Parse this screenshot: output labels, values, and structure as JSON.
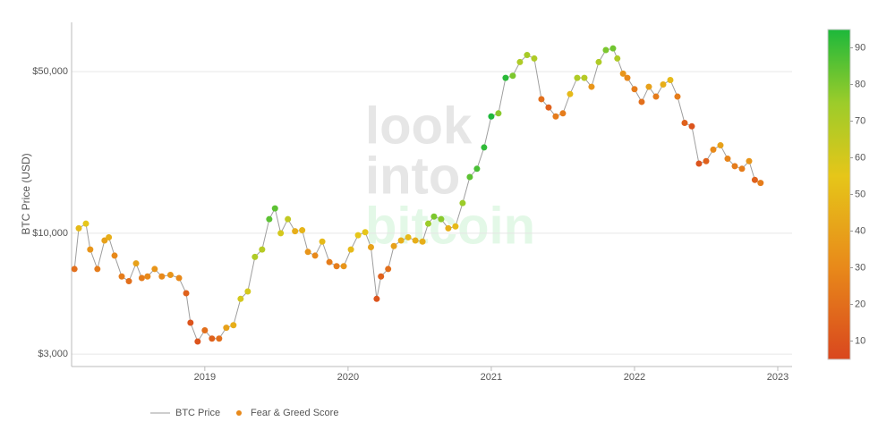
{
  "chart_data": {
    "type": "scatter",
    "y_label": "BTC Price (USD)",
    "watermark": [
      "look",
      "into",
      "bitcoin"
    ],
    "log_y": true,
    "grid": true,
    "legend": "bottom",
    "x": [
      2018.09,
      2018.12,
      2018.17,
      2018.2,
      2018.25,
      2018.3,
      2018.33,
      2018.37,
      2018.42,
      2018.47,
      2018.52,
      2018.56,
      2018.6,
      2018.65,
      2018.7,
      2018.76,
      2018.82,
      2018.87,
      2018.9,
      2018.95,
      2019.0,
      2019.05,
      2019.1,
      2019.15,
      2019.2,
      2019.25,
      2019.3,
      2019.35,
      2019.4,
      2019.45,
      2019.49,
      2019.53,
      2019.58,
      2019.63,
      2019.68,
      2019.72,
      2019.77,
      2019.82,
      2019.87,
      2019.92,
      2019.97,
      2020.02,
      2020.07,
      2020.12,
      2020.16,
      2020.2,
      2020.23,
      2020.28,
      2020.32,
      2020.37,
      2020.42,
      2020.47,
      2020.52,
      2020.56,
      2020.6,
      2020.65,
      2020.7,
      2020.75,
      2020.8,
      2020.85,
      2020.9,
      2020.95,
      2021.0,
      2021.05,
      2021.1,
      2021.15,
      2021.2,
      2021.25,
      2021.3,
      2021.35,
      2021.4,
      2021.45,
      2021.5,
      2021.55,
      2021.6,
      2021.65,
      2021.7,
      2021.75,
      2021.8,
      2021.85,
      2021.88,
      2021.92,
      2021.95,
      2022.0,
      2022.05,
      2022.1,
      2022.15,
      2022.2,
      2022.25,
      2022.3,
      2022.35,
      2022.4,
      2022.45,
      2022.5,
      2022.55,
      2022.6,
      2022.65,
      2022.7,
      2022.75,
      2022.8,
      2022.84,
      2022.88
    ],
    "series": [
      {
        "name": "BTC Price",
        "color": "#9e9e9e",
        "values": [
          7000,
          10500,
          11000,
          8500,
          7000,
          9300,
          9600,
          8000,
          6500,
          6200,
          7400,
          6400,
          6500,
          7000,
          6500,
          6600,
          6400,
          5500,
          4100,
          3400,
          3800,
          3500,
          3500,
          3900,
          4000,
          5200,
          5600,
          7900,
          8500,
          11500,
          12800,
          10000,
          11500,
          10200,
          10300,
          8300,
          8000,
          9200,
          7500,
          7200,
          7200,
          8500,
          9800,
          10100,
          8700,
          5200,
          6500,
          7000,
          8800,
          9300,
          9600,
          9300,
          9200,
          11000,
          11800,
          11500,
          10500,
          10700,
          13500,
          17500,
          19000,
          23500,
          32000,
          33000,
          47000,
          48000,
          55000,
          59000,
          57000,
          38000,
          35000,
          32000,
          33000,
          40000,
          47000,
          47000,
          43000,
          55000,
          62000,
          63000,
          57000,
          49000,
          47000,
          42000,
          37000,
          43000,
          39000,
          44000,
          46000,
          39000,
          30000,
          29000,
          20000,
          20500,
          23000,
          24000,
          21000,
          19500,
          19000,
          20500,
          17000,
          16500
        ]
      },
      {
        "name": "Fear & Greed Score",
        "color": "#e8891a",
        "values": [
          20,
          50,
          55,
          35,
          25,
          40,
          45,
          30,
          25,
          20,
          40,
          25,
          30,
          35,
          30,
          35,
          30,
          15,
          10,
          10,
          20,
          15,
          20,
          40,
          45,
          60,
          60,
          70,
          68,
          85,
          85,
          60,
          65,
          45,
          48,
          35,
          30,
          50,
          25,
          25,
          35,
          50,
          55,
          55,
          40,
          10,
          15,
          20,
          40,
          45,
          50,
          45,
          45,
          75,
          80,
          78,
          45,
          50,
          75,
          85,
          88,
          92,
          95,
          78,
          93,
          80,
          70,
          72,
          70,
          20,
          15,
          25,
          25,
          50,
          70,
          68,
          35,
          70,
          80,
          82,
          70,
          35,
          30,
          25,
          20,
          40,
          25,
          45,
          50,
          25,
          15,
          10,
          10,
          15,
          30,
          40,
          28,
          25,
          25,
          35,
          15,
          25
        ]
      }
    ],
    "xlim": [
      2018.07,
      2023.1
    ],
    "xticks": [
      2019,
      2020,
      2021,
      2022,
      2023
    ],
    "ylim": [
      2650,
      81700
    ],
    "yticks": [
      {
        "value": 3000,
        "label": "$3,000"
      },
      {
        "value": 10000,
        "label": "$10,000"
      },
      {
        "value": 50000,
        "label": "$50,000"
      }
    ],
    "clim": [
      5,
      95
    ],
    "cticks": [
      10,
      20,
      30,
      40,
      50,
      60,
      70,
      80,
      90
    ],
    "colorscale": [
      [
        5,
        "#d9471e"
      ],
      [
        30,
        "#e8891a"
      ],
      [
        55,
        "#e6c619"
      ],
      [
        75,
        "#9ccc2a"
      ],
      [
        95,
        "#1db83b"
      ]
    ]
  }
}
